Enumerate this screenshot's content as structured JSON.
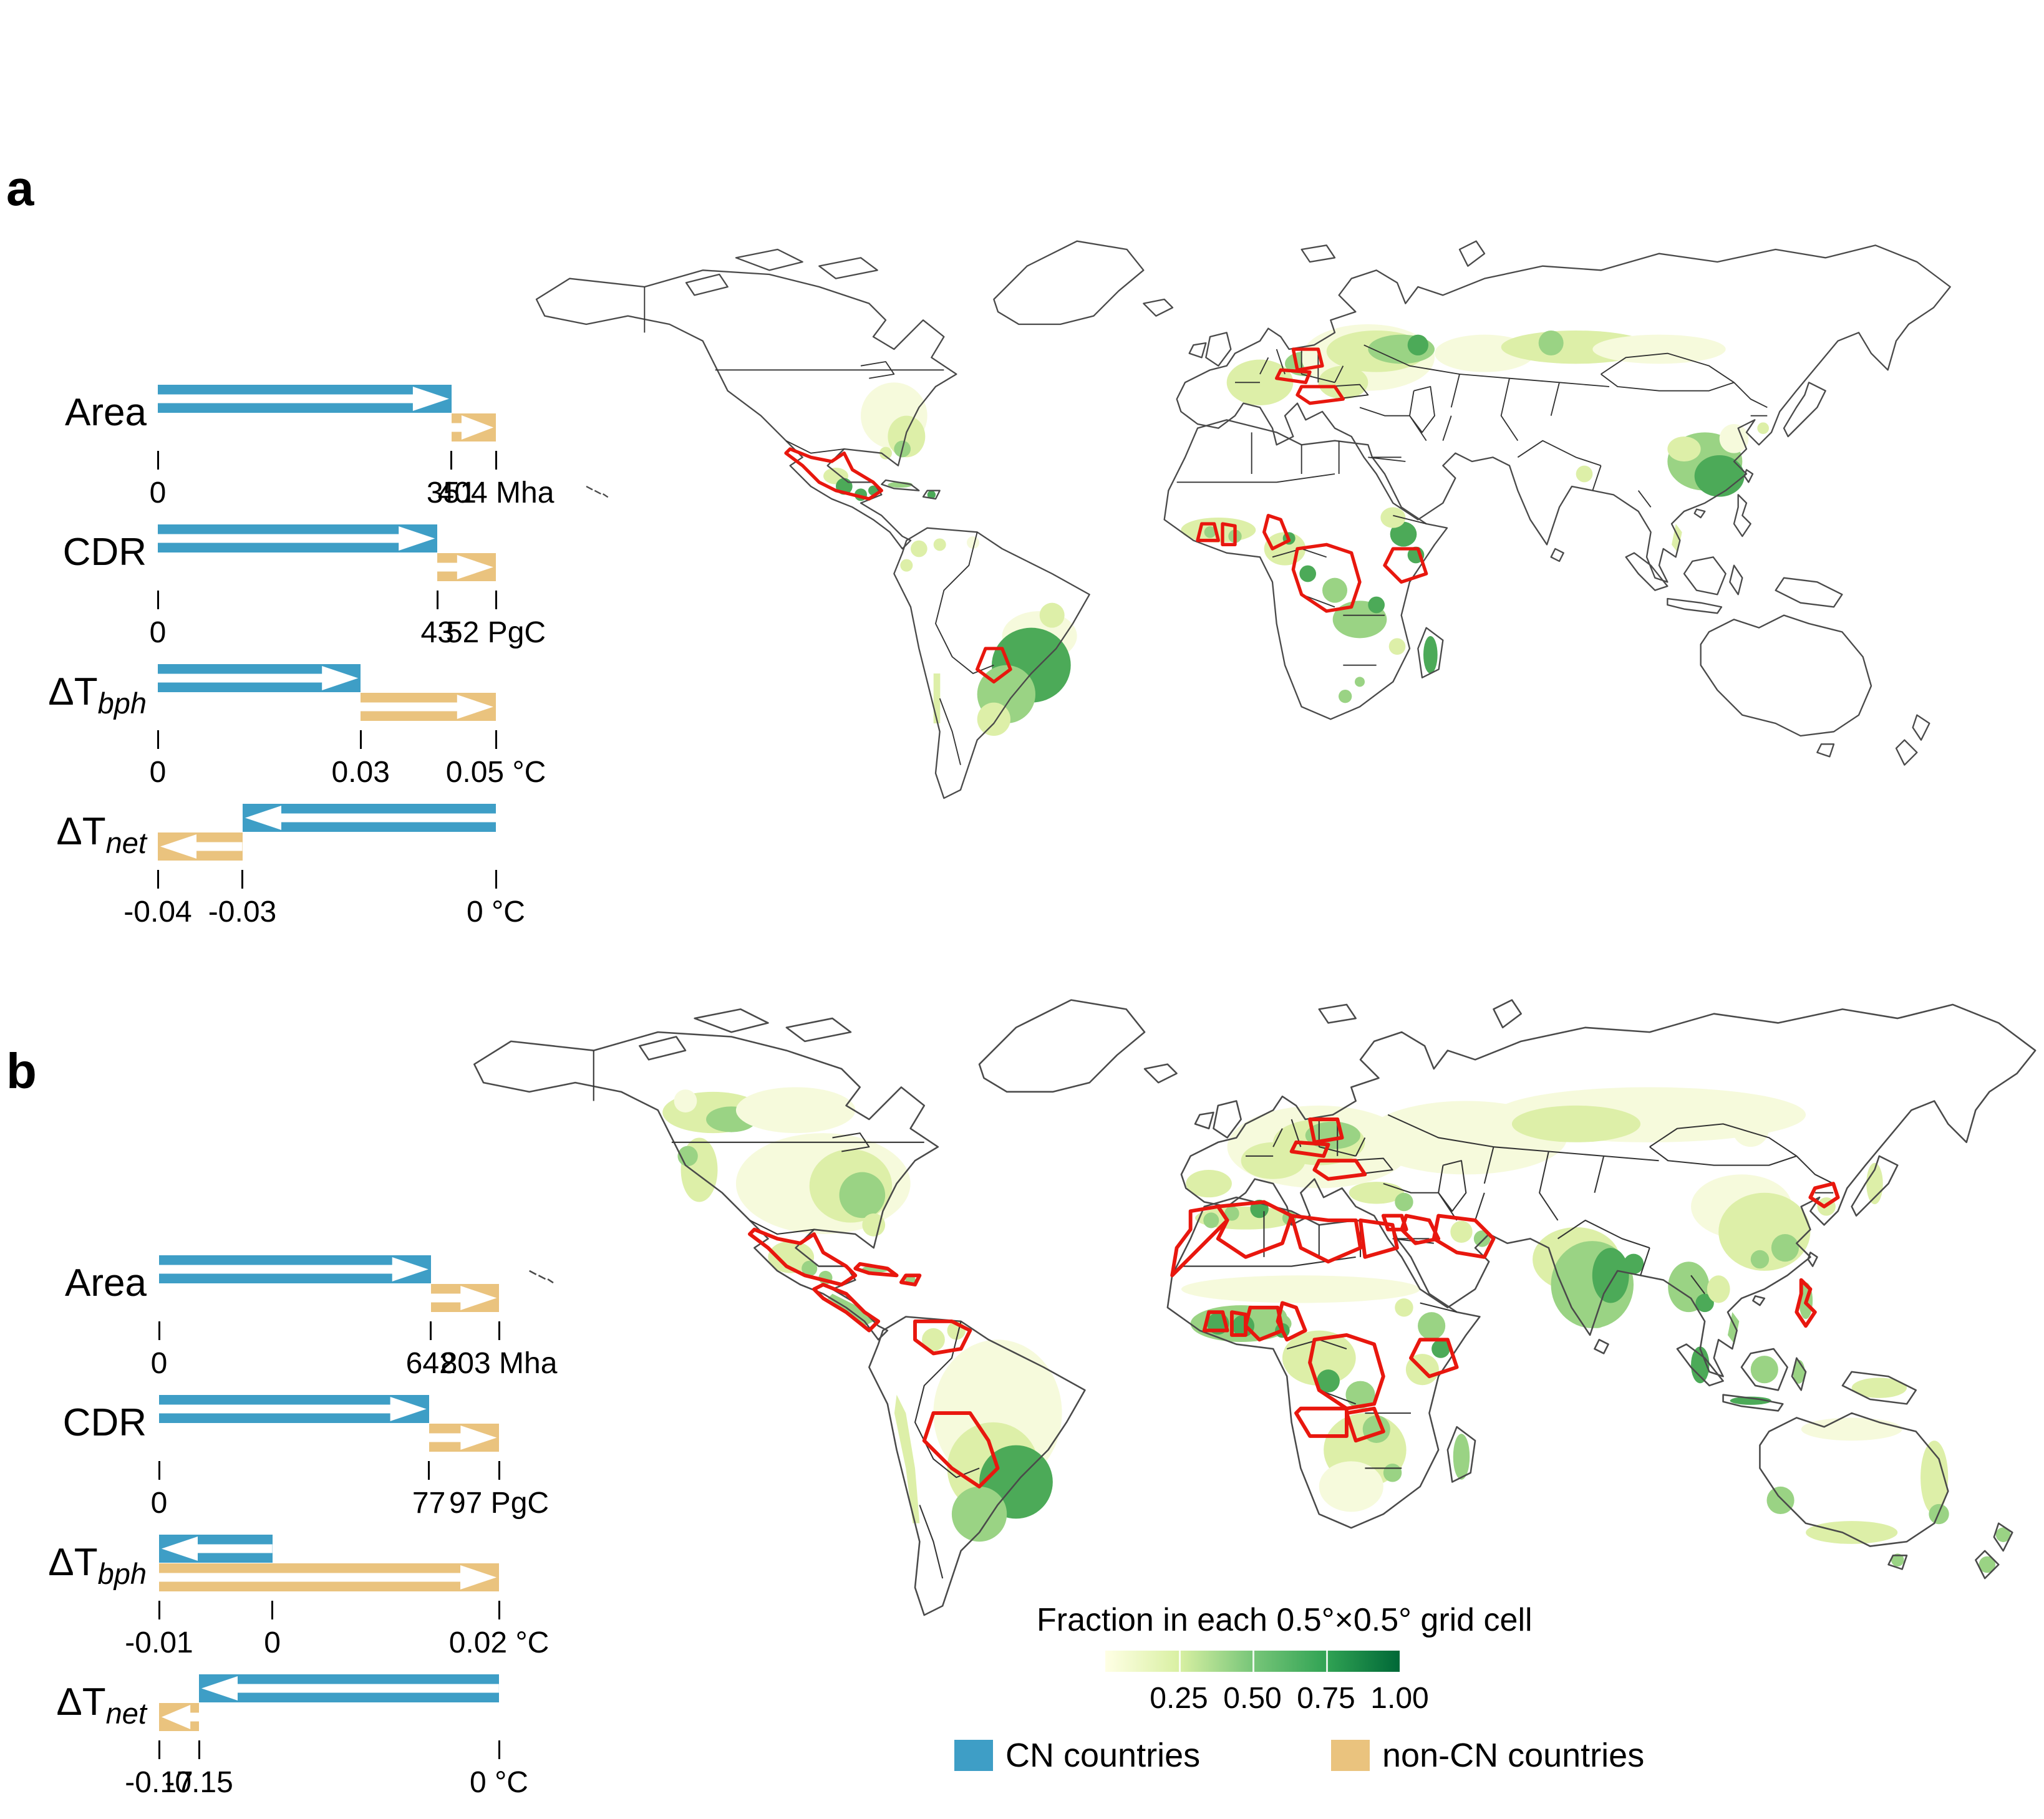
{
  "figure_type": "two-panel scientific figure: horizontal arrow charts with world maps of afforestation fraction",
  "panels": [
    {
      "letter": "a",
      "rows": [
        {
          "label": "Area",
          "sub": "",
          "min": 0,
          "max": 404,
          "bars": [
            {
              "series": "cn",
              "from": 0,
              "to": 351
            },
            {
              "series": "noncn",
              "from": 351,
              "to": 404
            }
          ],
          "ticks": [
            {
              "v": 0,
              "t": "0"
            },
            {
              "v": 351,
              "t": "351"
            },
            {
              "v": 404,
              "t": "404 Mha"
            }
          ]
        },
        {
          "label": "CDR",
          "sub": "",
          "min": 0,
          "max": 52,
          "bars": [
            {
              "series": "cn",
              "from": 0,
              "to": 43
            },
            {
              "series": "noncn",
              "from": 43,
              "to": 52
            }
          ],
          "ticks": [
            {
              "v": 0,
              "t": "0"
            },
            {
              "v": 43,
              "t": "43"
            },
            {
              "v": 52,
              "t": "52 PgC"
            }
          ]
        },
        {
          "label": "ΔT",
          "sub": "bph",
          "min": 0,
          "max": 0.05,
          "bars": [
            {
              "series": "cn",
              "from": 0,
              "to": 0.03
            },
            {
              "series": "noncn",
              "from": 0.03,
              "to": 0.05
            }
          ],
          "ticks": [
            {
              "v": 0,
              "t": "0"
            },
            {
              "v": 0.03,
              "t": "0.03"
            },
            {
              "v": 0.05,
              "t": "0.05 °C"
            }
          ]
        },
        {
          "label": "ΔT",
          "sub": "net",
          "min": -0.04,
          "max": 0,
          "bars": [
            {
              "series": "cn",
              "from": 0,
              "to": -0.03
            },
            {
              "series": "noncn",
              "from": -0.03,
              "to": -0.04
            }
          ],
          "ticks": [
            {
              "v": -0.04,
              "t": "-0.04"
            },
            {
              "v": -0.03,
              "t": "-0.03"
            },
            {
              "v": 0,
              "t": "0 °C"
            }
          ]
        }
      ]
    },
    {
      "letter": "b",
      "rows": [
        {
          "label": "Area",
          "sub": "",
          "min": 0,
          "max": 803,
          "bars": [
            {
              "series": "cn",
              "from": 0,
              "to": 642
            },
            {
              "series": "noncn",
              "from": 642,
              "to": 803
            }
          ],
          "ticks": [
            {
              "v": 0,
              "t": "0"
            },
            {
              "v": 642,
              "t": "642"
            },
            {
              "v": 803,
              "t": "803 Mha"
            }
          ]
        },
        {
          "label": "CDR",
          "sub": "",
          "min": 0,
          "max": 97,
          "bars": [
            {
              "series": "cn",
              "from": 0,
              "to": 77
            },
            {
              "series": "noncn",
              "from": 77,
              "to": 97
            }
          ],
          "ticks": [
            {
              "v": 0,
              "t": "0"
            },
            {
              "v": 77,
              "t": "77"
            },
            {
              "v": 97,
              "t": "97 PgC"
            }
          ]
        },
        {
          "label": "ΔT",
          "sub": "bph",
          "min": -0.01,
          "max": 0.02,
          "bars": [
            {
              "series": "cn",
              "from": 0,
              "to": -0.01
            },
            {
              "series": "noncn",
              "from": -0.01,
              "to": 0.02
            }
          ],
          "ticks": [
            {
              "v": -0.01,
              "t": "-0.01"
            },
            {
              "v": 0,
              "t": "0"
            },
            {
              "v": 0.02,
              "t": "0.02 °C"
            }
          ]
        },
        {
          "label": "ΔT",
          "sub": "net",
          "min": -0.17,
          "max": 0,
          "bars": [
            {
              "series": "cn",
              "from": 0,
              "to": -0.15
            },
            {
              "series": "noncn",
              "from": -0.15,
              "to": -0.17
            }
          ],
          "ticks": [
            {
              "v": -0.17,
              "t": "-0.17"
            },
            {
              "v": -0.15,
              "t": "-0.15"
            },
            {
              "v": 0,
              "t": "0 °C"
            }
          ]
        }
      ]
    }
  ],
  "legend": {
    "title": "Fraction in each 0.5°×0.5° grid cell",
    "ticks": [
      "0.25",
      "0.50",
      "0.75",
      "1.00"
    ],
    "series": [
      {
        "key": "cn",
        "name": "CN countries"
      },
      {
        "key": "noncn",
        "name": "non-CN countries"
      }
    ]
  },
  "colors": {
    "cn": "#3E9EC6",
    "noncn": "#EAC37E",
    "red_outline": "#E8170E",
    "colorbar": [
      "#FFFFE5",
      "#D9F0A3",
      "#78C679",
      "#31A354",
      "#006837"
    ],
    "greens": [
      "#F6FADC",
      "#DDEFA8",
      "#9AD384",
      "#4CAA58",
      "#187A3C"
    ]
  },
  "chart_data": [
    {
      "id": "panel-a-arrow-chart",
      "type": "bar",
      "orientation": "horizontal",
      "categories": [
        "Area",
        "CDR",
        "ΔT_bph",
        "ΔT_net"
      ],
      "units": [
        "Mha",
        "PgC",
        "°C",
        "°C"
      ],
      "series": [
        {
          "name": "CN countries",
          "segments": [
            [
              0,
              351
            ],
            [
              0,
              43
            ],
            [
              0,
              0.03
            ],
            [
              0,
              -0.03
            ]
          ]
        },
        {
          "name": "non-CN countries",
          "segments": [
            [
              351,
              404
            ],
            [
              43,
              52
            ],
            [
              0.03,
              0.05
            ],
            [
              -0.03,
              -0.04
            ]
          ]
        }
      ],
      "axis_ticks": [
        [
          0,
          351,
          404
        ],
        [
          0,
          43,
          52
        ],
        [
          0,
          0.03,
          0.05
        ],
        [
          -0.04,
          -0.03,
          0
        ]
      ],
      "axis_ranges": [
        [
          0,
          404
        ],
        [
          0,
          52
        ],
        [
          0,
          0.05
        ],
        [
          -0.04,
          0
        ]
      ]
    },
    {
      "id": "panel-b-arrow-chart",
      "type": "bar",
      "orientation": "horizontal",
      "categories": [
        "Area",
        "CDR",
        "ΔT_bph",
        "ΔT_net"
      ],
      "units": [
        "Mha",
        "PgC",
        "°C",
        "°C"
      ],
      "series": [
        {
          "name": "CN countries",
          "segments": [
            [
              0,
              642
            ],
            [
              0,
              77
            ],
            [
              0,
              -0.01
            ],
            [
              0,
              -0.15
            ]
          ]
        },
        {
          "name": "non-CN countries",
          "segments": [
            [
              642,
              803
            ],
            [
              77,
              97
            ],
            [
              -0.01,
              0.02
            ],
            [
              -0.15,
              -0.17
            ]
          ]
        }
      ],
      "axis_ticks": [
        [
          0,
          642,
          803
        ],
        [
          0,
          77,
          97
        ],
        [
          -0.01,
          0,
          0.02
        ],
        [
          -0.17,
          -0.15,
          0
        ]
      ],
      "axis_ranges": [
        [
          0,
          803
        ],
        [
          0,
          97
        ],
        [
          -0.01,
          0.02
        ],
        [
          -0.17,
          0
        ]
      ]
    },
    {
      "id": "map-color-scale",
      "type": "heatmap",
      "title": "Fraction in each 0.5°×0.5° grid cell",
      "scale_ticks": [
        0.25,
        0.5,
        0.75,
        1.0
      ],
      "value_range": [
        0,
        1
      ],
      "note": "green shading on both world maps; red outlines mark countries, blue/tan swatches denote CN vs non-CN countries"
    }
  ]
}
